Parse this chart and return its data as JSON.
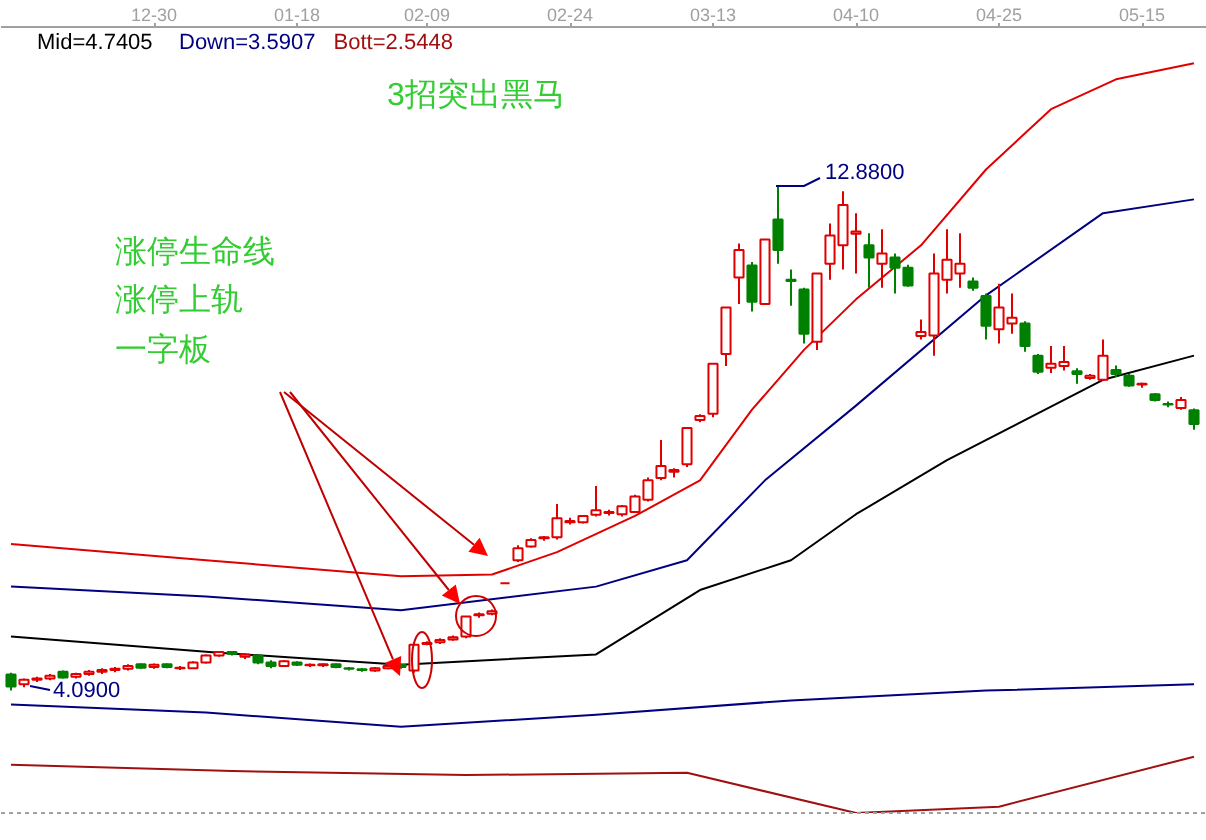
{
  "chart_data": {
    "type": "candlestick",
    "categories": [
      null,
      null,
      null,
      null,
      null,
      null,
      null,
      null,
      null,
      null,
      null,
      "12-30",
      null,
      null,
      null,
      null,
      null,
      null,
      null,
      null,
      null,
      null,
      "01-18",
      null,
      null,
      null,
      null,
      null,
      null,
      null,
      null,
      null,
      "02-09",
      null,
      null,
      null,
      null,
      null,
      null,
      null,
      null,
      null,
      null,
      "02-24",
      null,
      null,
      null,
      null,
      null,
      null,
      null,
      null,
      null,
      null,
      "03-13",
      null,
      null,
      null,
      null,
      null,
      null,
      null,
      null,
      null,
      null,
      "04-10",
      null,
      null,
      null,
      null,
      null,
      null,
      null,
      null,
      null,
      null,
      "04-25",
      null,
      null,
      null,
      null,
      null,
      null,
      null,
      null,
      null,
      null,
      "05-15",
      null,
      null,
      null,
      null
    ],
    "ohlc": [
      [
        4.37,
        4.4,
        4.09,
        4.16
      ],
      [
        4.2,
        4.3,
        4.15,
        4.28
      ],
      [
        4.28,
        4.33,
        4.24,
        4.3
      ],
      [
        4.3,
        4.38,
        4.27,
        4.35
      ],
      [
        4.42,
        4.44,
        4.3,
        4.32
      ],
      [
        4.33,
        4.4,
        4.3,
        4.38
      ],
      [
        4.38,
        4.45,
        4.35,
        4.42
      ],
      [
        4.42,
        4.48,
        4.38,
        4.45
      ],
      [
        4.45,
        4.5,
        4.41,
        4.47
      ],
      [
        4.47,
        4.55,
        4.44,
        4.52
      ],
      [
        4.55,
        4.56,
        4.47,
        4.49
      ],
      [
        4.5,
        4.56,
        4.47,
        4.54
      ],
      [
        4.55,
        4.56,
        4.48,
        4.5
      ],
      [
        4.48,
        4.52,
        4.45,
        4.49
      ],
      [
        4.48,
        4.6,
        4.47,
        4.58
      ],
      [
        4.58,
        4.72,
        4.56,
        4.7
      ],
      [
        4.7,
        4.78,
        4.68,
        4.76
      ],
      [
        4.76,
        4.78,
        4.7,
        4.73
      ],
      [
        4.68,
        4.74,
        4.64,
        4.72
      ],
      [
        4.7,
        4.71,
        4.55,
        4.58
      ],
      [
        4.58,
        4.62,
        4.48,
        4.52
      ],
      [
        4.52,
        4.62,
        4.5,
        4.6
      ],
      [
        4.58,
        4.6,
        4.52,
        4.54
      ],
      [
        4.53,
        4.56,
        4.5,
        4.54
      ],
      [
        4.53,
        4.56,
        4.5,
        4.55
      ],
      [
        4.55,
        4.56,
        4.48,
        4.5
      ],
      [
        4.48,
        4.5,
        4.44,
        4.47
      ],
      [
        4.46,
        4.48,
        4.42,
        4.45
      ],
      [
        4.44,
        4.5,
        4.42,
        4.48
      ],
      [
        4.48,
        4.55,
        4.46,
        4.52
      ],
      [
        4.54,
        4.56,
        4.47,
        4.5
      ],
      [
        4.44,
        4.89,
        4.4,
        4.89
      ],
      [
        4.9,
        4.95,
        4.88,
        4.92
      ],
      [
        4.93,
        5.0,
        4.9,
        4.97
      ],
      [
        4.98,
        5.05,
        4.96,
        5.02
      ],
      [
        5.03,
        5.38,
        5.0,
        5.38
      ],
      [
        5.4,
        5.45,
        5.36,
        5.42
      ],
      [
        5.43,
        5.5,
        5.4,
        5.47
      ],
      [
        5.96,
        5.96,
        5.96,
        5.96
      ],
      [
        6.36,
        6.62,
        6.33,
        6.57
      ],
      [
        6.6,
        6.74,
        6.58,
        6.71
      ],
      [
        6.74,
        6.78,
        6.7,
        6.76
      ],
      [
        6.76,
        7.34,
        6.72,
        7.09
      ],
      [
        7.02,
        7.1,
        6.98,
        7.04
      ],
      [
        7.02,
        7.14,
        7.0,
        7.13
      ],
      [
        7.15,
        7.65,
        7.12,
        7.23
      ],
      [
        7.18,
        7.24,
        7.14,
        7.2
      ],
      [
        7.16,
        7.32,
        7.12,
        7.3
      ],
      [
        7.2,
        7.5,
        7.18,
        7.47
      ],
      [
        7.41,
        7.8,
        7.38,
        7.75
      ],
      [
        7.79,
        8.45,
        7.75,
        8.0
      ],
      [
        7.9,
        7.96,
        7.8,
        7.93
      ],
      [
        8.03,
        8.66,
        7.98,
        8.66
      ],
      [
        8.8,
        8.9,
        8.76,
        8.87
      ],
      [
        8.91,
        9.78,
        8.85,
        9.78
      ],
      [
        9.95,
        10.76,
        9.74,
        10.76
      ],
      [
        11.28,
        11.87,
        10.82,
        11.76
      ],
      [
        11.49,
        11.55,
        10.69,
        10.86
      ],
      [
        10.82,
        11.94,
        10.8,
        11.94
      ],
      [
        12.29,
        12.88,
        11.52,
        11.76
      ],
      [
        11.24,
        11.42,
        10.79,
        11.22
      ],
      [
        11.07,
        11.1,
        10.13,
        10.3
      ],
      [
        10.16,
        11.35,
        10.02,
        11.35
      ],
      [
        11.52,
        12.22,
        11.24,
        12.01
      ],
      [
        11.84,
        12.78,
        11.42,
        12.54
      ],
      [
        12.04,
        12.4,
        11.35,
        12.08
      ],
      [
        11.84,
        12.05,
        11.1,
        11.63
      ],
      [
        11.52,
        12.12,
        11.1,
        11.7
      ],
      [
        11.63,
        11.7,
        11.0,
        11.45
      ],
      [
        11.45,
        11.5,
        11.12,
        11.14
      ],
      [
        10.26,
        10.55,
        10.2,
        10.33
      ],
      [
        10.27,
        11.7,
        9.92,
        11.35
      ],
      [
        11.24,
        12.12,
        11.0,
        11.59
      ],
      [
        11.35,
        12.05,
        11.1,
        11.52
      ],
      [
        11.21,
        11.28,
        11.05,
        11.1
      ],
      [
        10.96,
        11.0,
        10.2,
        10.44
      ],
      [
        10.38,
        11.17,
        10.13,
        10.76
      ],
      [
        10.48,
        11.0,
        10.3,
        10.58
      ],
      [
        10.48,
        10.52,
        9.99,
        10.09
      ],
      [
        9.92,
        9.95,
        9.6,
        9.64
      ],
      [
        9.71,
        10.09,
        9.62,
        9.78
      ],
      [
        9.74,
        10.09,
        9.66,
        9.81
      ],
      [
        9.65,
        9.7,
        9.43,
        9.6
      ],
      [
        9.53,
        9.6,
        9.5,
        9.57
      ],
      [
        9.5,
        10.2,
        9.48,
        9.92
      ],
      [
        9.67,
        9.75,
        9.55,
        9.6
      ],
      [
        9.57,
        9.6,
        9.38,
        9.4
      ],
      [
        9.42,
        9.45,
        9.36,
        9.43
      ],
      [
        9.25,
        9.27,
        9.12,
        9.15
      ],
      [
        9.08,
        9.12,
        9.02,
        9.07
      ],
      [
        9.01,
        9.2,
        8.98,
        9.15
      ],
      [
        8.97,
        9.0,
        8.63,
        8.73
      ]
    ],
    "colors": [
      "#008000",
      "#e00000",
      "#e00000",
      "#e00000",
      "#008000",
      "#e00000",
      "#e00000",
      "#e00000",
      "#e00000",
      "#e00000",
      "#008000",
      "#e00000",
      "#008000",
      "#e00000",
      "#e00000",
      "#e00000",
      "#e00000",
      "#008000",
      "#e00000",
      "#008000",
      "#008000",
      "#e00000",
      "#008000",
      "#e00000",
      "#e00000",
      "#008000",
      "#008000",
      "#008000",
      "#e00000",
      "#e00000",
      "#008000",
      "#e00000",
      "#e00000",
      "#e00000",
      "#e00000",
      "#e00000",
      "#e00000",
      "#e00000",
      "#e00000",
      "#e00000",
      "#e00000",
      "#e00000",
      "#e00000",
      "#e00000",
      "#e00000",
      "#e00000",
      "#e00000",
      "#e00000",
      "#e00000",
      "#e00000",
      "#e00000",
      "#e00000",
      "#e00000",
      "#e00000",
      "#e00000",
      "#e00000",
      "#e00000",
      "#008000",
      "#e00000",
      "#008000",
      "#008000",
      "#008000",
      "#e00000",
      "#e00000",
      "#e00000",
      "#e00000",
      "#008000",
      "#e00000",
      "#008000",
      "#008000",
      "#e00000",
      "#e00000",
      "#e00000",
      "#e00000",
      "#008000",
      "#008000",
      "#e00000",
      "#e00000",
      "#008000",
      "#008000",
      "#e00000",
      "#e00000",
      "#008000",
      "#e00000",
      "#e00000",
      "#008000",
      "#008000",
      "#e00000",
      "#008000",
      "#008000",
      "#e00000",
      "#008000"
    ],
    "series": [
      {
        "type": "line",
        "color": "#e00000",
        "values": [
          6.64,
          null,
          null,
          null,
          null,
          null,
          null,
          null,
          null,
          null,
          null,
          null,
          null,
          null,
          null,
          6.36,
          null,
          null,
          null,
          null,
          null,
          null,
          null,
          null,
          null,
          null,
          null,
          null,
          null,
          null,
          6.08,
          null,
          null,
          null,
          null,
          null,
          null,
          6.11,
          null,
          null,
          null,
          null,
          6.5,
          null,
          null,
          null,
          null,
          null,
          7.13,
          null,
          null,
          null,
          null,
          7.75,
          null,
          null,
          null,
          8.98,
          null,
          null,
          null,
          10.02,
          null,
          null,
          null,
          10.9,
          null,
          null,
          null,
          null,
          11.84,
          null,
          null,
          null,
          null,
          13.16,
          null,
          null,
          null,
          null,
          14.21,
          null,
          null,
          null,
          null,
          14.73,
          null,
          null,
          null,
          null,
          null,
          15.01
        ]
      },
      {
        "type": "line",
        "color": "#000080",
        "values": [
          5.9,
          null,
          null,
          null,
          null,
          null,
          null,
          null,
          null,
          null,
          null,
          null,
          null,
          null,
          null,
          5.73,
          null,
          null,
          null,
          null,
          null,
          null,
          null,
          null,
          null,
          null,
          null,
          null,
          null,
          null,
          5.49,
          null,
          null,
          null,
          null,
          null,
          null,
          null,
          null,
          null,
          null,
          null,
          null,
          null,
          null,
          5.9,
          null,
          null,
          null,
          null,
          null,
          null,
          6.36,
          null,
          null,
          null,
          null,
          null,
          7.75,
          null,
          null,
          null,
          null,
          null,
          null,
          9.05,
          null,
          null,
          null,
          null,
          null,
          null,
          null,
          null,
          null,
          10.97,
          null,
          null,
          null,
          null,
          null,
          null,
          null,
          null,
          12.4,
          null,
          null,
          null,
          null,
          null,
          null,
          12.64
        ]
      },
      {
        "name": "Mid=4.7405",
        "type": "line",
        "color": "#000000",
        "values": [
          5.03,
          null,
          null,
          null,
          null,
          null,
          null,
          null,
          null,
          null,
          null,
          null,
          null,
          null,
          null,
          null,
          4.75,
          null,
          null,
          null,
          null,
          null,
          null,
          null,
          null,
          null,
          null,
          null,
          null,
          null,
          4.54,
          null,
          null,
          null,
          null,
          null,
          null,
          null,
          null,
          null,
          null,
          null,
          null,
          null,
          null,
          4.72,
          null,
          null,
          null,
          null,
          null,
          null,
          null,
          5.84,
          null,
          null,
          null,
          null,
          null,
          null,
          6.36,
          null,
          null,
          null,
          null,
          7.16,
          null,
          null,
          null,
          null,
          null,
          null,
          8.1,
          null,
          null,
          null,
          null,
          null,
          null,
          null,
          null,
          null,
          null,
          null,
          9.5,
          null,
          null,
          null,
          null,
          null,
          null,
          9.92
        ]
      },
      {
        "name": "Down=3.5907",
        "type": "line",
        "color": "#000080",
        "values": [
          3.85,
          null,
          null,
          null,
          null,
          null,
          null,
          null,
          null,
          null,
          null,
          null,
          null,
          null,
          null,
          3.71,
          null,
          null,
          null,
          null,
          null,
          null,
          null,
          null,
          null,
          null,
          null,
          null,
          null,
          null,
          3.46,
          null,
          null,
          null,
          null,
          null,
          null,
          null,
          null,
          null,
          null,
          null,
          null,
          null,
          null,
          3.67,
          null,
          null,
          null,
          null,
          null,
          null,
          null,
          null,
          null,
          null,
          null,
          null,
          null,
          null,
          3.92,
          null,
          null,
          null,
          null,
          null,
          null,
          null,
          null,
          null,
          null,
          null,
          null,
          null,
          null,
          4.09,
          null,
          null,
          null,
          null,
          null,
          null,
          null,
          null,
          null,
          null,
          null,
          null,
          null,
          null,
          null,
          4.2
        ]
      },
      {
        "name": "Bott=2.5448",
        "type": "line",
        "color": "#a01010",
        "values": [
          2.8,
          null,
          null,
          null,
          null,
          null,
          null,
          null,
          null,
          null,
          null,
          null,
          null,
          null,
          null,
          null,
          null,
          2.69,
          null,
          null,
          null,
          null,
          null,
          null,
          null,
          null,
          null,
          null,
          null,
          null,
          null,
          null,
          null,
          null,
          null,
          2.62,
          null,
          null,
          null,
          null,
          null,
          null,
          null,
          null,
          null,
          null,
          null,
          null,
          null,
          null,
          null,
          null,
          2.66,
          null,
          null,
          null,
          null,
          null,
          null,
          null,
          null,
          null,
          null,
          null,
          null,
          1.96,
          null,
          null,
          null,
          null,
          null,
          null,
          null,
          null,
          null,
          null,
          2.07,
          null,
          null,
          null,
          null,
          null,
          null,
          null,
          null,
          null,
          null,
          null,
          null,
          null,
          null,
          2.94
        ]
      }
    ],
    "ylim": [
      1.96,
      15.64
    ],
    "tick_labels": "x",
    "legend": "top left",
    "grid": false,
    "annotations": [
      "3招突出黑马",
      "涨停生命线",
      "涨停上轨",
      "一字板",
      "12.8800",
      "4.0900"
    ]
  }
}
